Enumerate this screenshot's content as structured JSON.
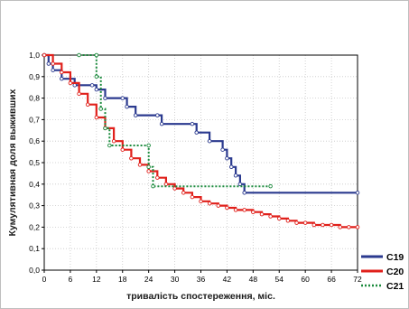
{
  "chart_data": {
    "type": "line",
    "title": "",
    "xlabel": "тривалість спостереження, міс.",
    "ylabel": "Кумулятивная доля выживших",
    "xlim": [
      0,
      72
    ],
    "ylim": [
      0,
      1.0
    ],
    "x_ticks": [
      0,
      6,
      12,
      18,
      24,
      30,
      36,
      42,
      48,
      54,
      60,
      66,
      72
    ],
    "y_ticks": [
      0.0,
      0.1,
      0.2,
      0.3,
      0.4,
      0.5,
      0.6,
      0.7,
      0.8,
      0.9,
      1.0
    ],
    "y_tick_labels": [
      "0,0",
      "0,1",
      "0,2",
      "0,3",
      "0,4",
      "0,5",
      "0,6",
      "0,7",
      "0,8",
      "0,9",
      "1,0"
    ],
    "grid": true,
    "legend_position": "bottom-right",
    "series": [
      {
        "name": "C19",
        "color": "#2b3a8f",
        "style": "step-solid",
        "points": [
          [
            0,
            1.0
          ],
          [
            1,
            0.96
          ],
          [
            2,
            0.93
          ],
          [
            4,
            0.89
          ],
          [
            7,
            0.86
          ],
          [
            11,
            0.86
          ],
          [
            12,
            0.84
          ],
          [
            14,
            0.8
          ],
          [
            18,
            0.8
          ],
          [
            19,
            0.76
          ],
          [
            21,
            0.72
          ],
          [
            26,
            0.72
          ],
          [
            27,
            0.68
          ],
          [
            34,
            0.68
          ],
          [
            35,
            0.64
          ],
          [
            38,
            0.6
          ],
          [
            41,
            0.56
          ],
          [
            42,
            0.52
          ],
          [
            43,
            0.48
          ],
          [
            44,
            0.44
          ],
          [
            45,
            0.4
          ],
          [
            46,
            0.36
          ],
          [
            72,
            0.36
          ]
        ]
      },
      {
        "name": "C20",
        "color": "#e0201b",
        "style": "step-solid",
        "points": [
          [
            0,
            1.0
          ],
          [
            2,
            0.96
          ],
          [
            4,
            0.92
          ],
          [
            6,
            0.87
          ],
          [
            8,
            0.82
          ],
          [
            10,
            0.77
          ],
          [
            12,
            0.71
          ],
          [
            14,
            0.66
          ],
          [
            16,
            0.6
          ],
          [
            18,
            0.56
          ],
          [
            20,
            0.52
          ],
          [
            22,
            0.49
          ],
          [
            24,
            0.46
          ],
          [
            26,
            0.43
          ],
          [
            28,
            0.4
          ],
          [
            30,
            0.38
          ],
          [
            32,
            0.36
          ],
          [
            34,
            0.34
          ],
          [
            36,
            0.32
          ],
          [
            38,
            0.31
          ],
          [
            40,
            0.3
          ],
          [
            42,
            0.29
          ],
          [
            44,
            0.28
          ],
          [
            46,
            0.28
          ],
          [
            48,
            0.27
          ],
          [
            50,
            0.26
          ],
          [
            52,
            0.25
          ],
          [
            54,
            0.24
          ],
          [
            56,
            0.23
          ],
          [
            58,
            0.22
          ],
          [
            60,
            0.22
          ],
          [
            62,
            0.21
          ],
          [
            64,
            0.21
          ],
          [
            66,
            0.21
          ],
          [
            68,
            0.2
          ],
          [
            70,
            0.2
          ],
          [
            72,
            0.2
          ]
        ]
      },
      {
        "name": "C21",
        "color": "#1a8a3c",
        "style": "step-dotted",
        "points": [
          [
            8,
            1.0
          ],
          [
            12,
            1.0
          ],
          [
            12,
            0.9
          ],
          [
            13,
            0.75
          ],
          [
            14,
            0.66
          ],
          [
            15,
            0.58
          ],
          [
            24,
            0.58
          ],
          [
            24,
            0.48
          ],
          [
            25,
            0.39
          ],
          [
            52,
            0.39
          ]
        ]
      }
    ]
  }
}
